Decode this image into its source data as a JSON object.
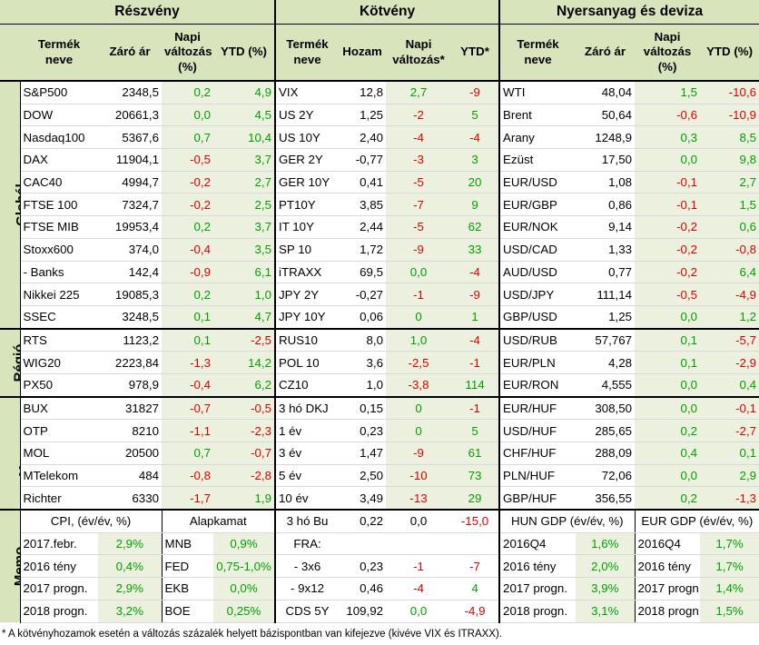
{
  "headers": {
    "sections": [
      "Részvény",
      "Kötvény",
      "Nyersanyag és deviza"
    ],
    "stocks": [
      "Termék neve",
      "Záró ár",
      "Napi változás (%)",
      "YTD (%)"
    ],
    "bonds": [
      "Termék neve",
      "Hozam",
      "Napi változás*",
      "YTD*"
    ],
    "commod": [
      "Termék neve",
      "Záró ár",
      "Napi változás (%)",
      "YTD (%)"
    ]
  },
  "regions": [
    "Globál",
    "Régió",
    "Magyar",
    "Memo"
  ],
  "rows": [
    {
      "s": [
        "S&P500",
        "2348,5",
        "0,2",
        "4,9"
      ],
      "b": [
        "VIX",
        "12,8",
        "2,7",
        "-9"
      ],
      "c": [
        "WTI",
        "48,04",
        "1,5",
        "-10,6"
      ]
    },
    {
      "s": [
        "DOW",
        "20661,3",
        "0,0",
        "4,5"
      ],
      "b": [
        "US 2Y",
        "1,25",
        "-2",
        "5"
      ],
      "c": [
        "Brent",
        "50,64",
        "-0,6",
        "-10,9"
      ]
    },
    {
      "s": [
        "Nasdaq100",
        "5367,6",
        "0,7",
        "10,4"
      ],
      "b": [
        "US 10Y",
        "2,40",
        "-4",
        "-4"
      ],
      "c": [
        "Arany",
        "1248,9",
        "0,3",
        "8,5"
      ]
    },
    {
      "s": [
        "DAX",
        "11904,1",
        "-0,5",
        "3,7"
      ],
      "b": [
        "GER 2Y",
        "-0,77",
        "-3",
        "3"
      ],
      "c": [
        "Ezüst",
        "17,50",
        "0,0",
        "9,8"
      ]
    },
    {
      "s": [
        "CAC40",
        "4994,7",
        "-0,2",
        "2,7"
      ],
      "b": [
        "GER 10Y",
        "0,41",
        "-5",
        "20"
      ],
      "c": [
        "EUR/USD",
        "1,08",
        "-0,1",
        "2,7"
      ]
    },
    {
      "s": [
        "FTSE 100",
        "7324,7",
        "-0,2",
        "2,5"
      ],
      "b": [
        "PT10Y",
        "3,85",
        "-7",
        "9"
      ],
      "c": [
        "EUR/GBP",
        "0,86",
        "-0,1",
        "1,5"
      ]
    },
    {
      "s": [
        "FTSE MIB",
        "19953,4",
        "0,2",
        "3,7"
      ],
      "b": [
        "IT 10Y",
        "2,44",
        "-5",
        "62"
      ],
      "c": [
        "EUR/NOK",
        "9,14",
        "-0,2",
        "0,6"
      ]
    },
    {
      "s": [
        "Stoxx600",
        "374,0",
        "-0,4",
        "3,5"
      ],
      "b": [
        "SP 10",
        "1,72",
        "-9",
        "33"
      ],
      "c": [
        "USD/CAD",
        "1,33",
        "-0,2",
        "-0,8"
      ]
    },
    {
      "s": [
        "  - Banks",
        "142,4",
        "-0,9",
        "6,1"
      ],
      "b": [
        "iTRAXX",
        "69,5",
        "0,0",
        "-4"
      ],
      "c": [
        "AUD/USD",
        "0,77",
        "-0,2",
        "6,4"
      ]
    },
    {
      "s": [
        "Nikkei 225",
        "19085,3",
        "0,2",
        "1,0"
      ],
      "b": [
        "JPY 2Y",
        "-0,27",
        "-1",
        "-9"
      ],
      "c": [
        "USD/JPY",
        "111,14",
        "-0,5",
        "-4,9"
      ]
    },
    {
      "s": [
        "SSEC",
        "3248,5",
        "0,1",
        "4,7"
      ],
      "b": [
        "JPY 10Y",
        "0,06",
        "0",
        "1"
      ],
      "c": [
        "GBP/USD",
        "1,25",
        "0,0",
        "1,2"
      ]
    },
    {
      "s": [
        "RTS",
        "1123,2",
        "0,1",
        "-2,5"
      ],
      "b": [
        "RUS10",
        "8,0",
        "1,0",
        "-4"
      ],
      "c": [
        "USD/RUB",
        "57,767",
        "0,1",
        "-5,7"
      ]
    },
    {
      "s": [
        "WIG20",
        "2223,84",
        "-1,3",
        "14,2"
      ],
      "b": [
        "POL 10",
        "3,6",
        "-2,5",
        "-1"
      ],
      "c": [
        "EUR/PLN",
        "4,28",
        "0,1",
        "-2,9"
      ]
    },
    {
      "s": [
        "PX50",
        "978,9",
        "-0,4",
        "6,2"
      ],
      "b": [
        "CZ10",
        "1,0",
        "-3,8",
        "114"
      ],
      "c": [
        "EUR/RON",
        "4,555",
        "0,0",
        "0,4"
      ]
    },
    {
      "s": [
        "BUX",
        "31827",
        "-0,7",
        "-0,5"
      ],
      "b": [
        "3 hó DKJ",
        "0,15",
        "0",
        "-1"
      ],
      "c": [
        "EUR/HUF",
        "308,50",
        "0,0",
        "-0,1"
      ]
    },
    {
      "s": [
        "OTP",
        "8210",
        "-1,1",
        "-2,3"
      ],
      "b": [
        "1 év",
        "0,23",
        "0",
        "5"
      ],
      "c": [
        "USD/HUF",
        "285,65",
        "0,2",
        "-2,7"
      ]
    },
    {
      "s": [
        "MOL",
        "20500",
        "0,7",
        "-0,7"
      ],
      "b": [
        "3 év",
        "1,47",
        "-9",
        "61"
      ],
      "c": [
        "CHF/HUF",
        "288,09",
        "0,4",
        "0,1"
      ]
    },
    {
      "s": [
        "MTelekom",
        "484",
        "-0,8",
        "-2,8"
      ],
      "b": [
        "5 év",
        "2,50",
        "-10",
        "73"
      ],
      "c": [
        "PLN/HUF",
        "72,06",
        "0,0",
        "2,9"
      ]
    },
    {
      "s": [
        "Richter",
        "6330",
        "-1,7",
        "1,9"
      ],
      "b": [
        "10 év",
        "3,49",
        "-13",
        "29"
      ],
      "c": [
        "GBP/HUF",
        "356,55",
        "0,2",
        "-1,3"
      ]
    }
  ],
  "memo": {
    "cpi_title": "CPI, (év/év, %)",
    "rate_title": "Alapkamat",
    "hun_title": "HUN GDP (év/év, %)",
    "eur_title": "EUR GDP (év/év, %)",
    "bond_head": [
      "3 hó Bu",
      "0,22",
      "0,0",
      "-15,0"
    ],
    "rows": [
      {
        "cpi": [
          "2017.febr.",
          "2,9%"
        ],
        "rate": [
          "MNB",
          "0,9%"
        ],
        "bond": [
          "FRA:",
          "",
          "",
          ""
        ],
        "hun": [
          "2016Q4",
          "1,6%"
        ],
        "eur": [
          "2016Q4",
          "1,7%"
        ]
      },
      {
        "cpi": [
          "2016 tény",
          "0,4%"
        ],
        "rate": [
          "FED",
          "0,75-1,0%"
        ],
        "bond": [
          "- 3x6",
          "0,23",
          "-1",
          "-7"
        ],
        "hun": [
          "2016 tény",
          "2,0%"
        ],
        "eur": [
          "2016 tény",
          "1,7%"
        ]
      },
      {
        "cpi": [
          "2017 progn.",
          "2,9%"
        ],
        "rate": [
          "EKB",
          "0,0%"
        ],
        "bond": [
          "- 9x12",
          "0,46",
          "-4",
          "4"
        ],
        "hun": [
          "2017 progn.",
          "3,9%"
        ],
        "eur": [
          "2017 progn.",
          "1,4%"
        ]
      },
      {
        "cpi": [
          "2018 progn.",
          "3,2%"
        ],
        "rate": [
          "BOE",
          "0,25%"
        ],
        "bond": [
          "CDS 5Y",
          "109,92",
          "0,0",
          "-4,9"
        ],
        "hun": [
          "2018 progn.",
          "3,1%"
        ],
        "eur": [
          "2018 progn.",
          "1,5%"
        ]
      }
    ]
  },
  "footnote": "* A kötvényhozamok esetén a változás százalék helyett bázispontban van kifejezve (kivéve VIX és ITRAXX).",
  "colors": {
    "header_bg": "#d8e4bc",
    "light_bg": "#ebf1de",
    "positive": "#00a000",
    "negative": "#e00000"
  }
}
